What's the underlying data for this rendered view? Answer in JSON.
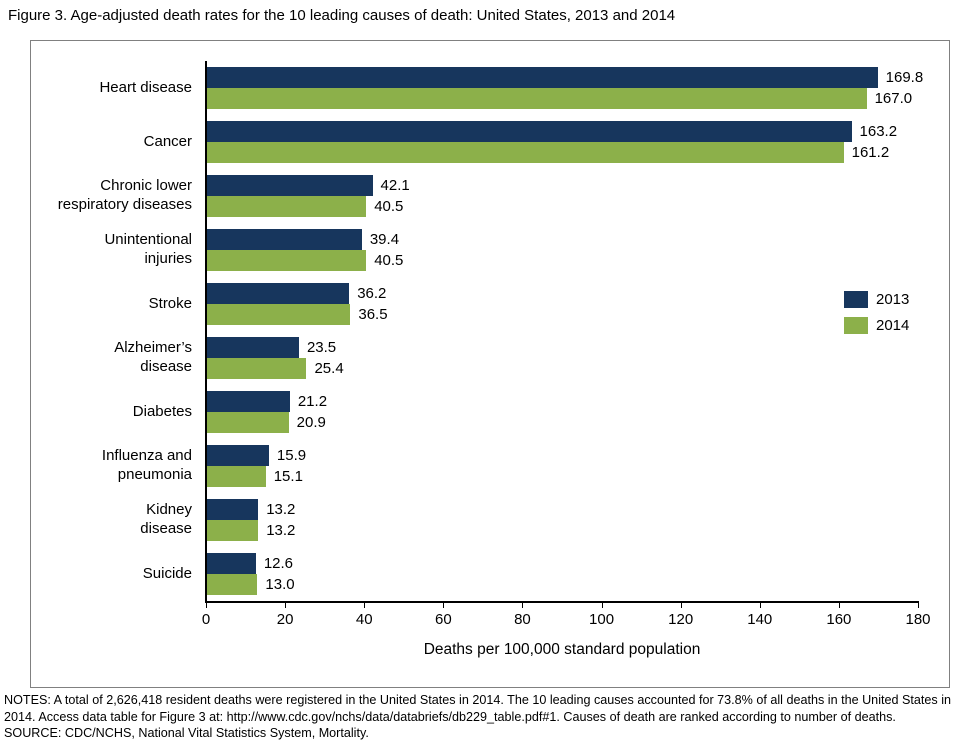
{
  "title": "Figure 3. Age-adjusted death rates for the 10 leading causes of death: United States, 2013 and 2014",
  "chart_data": {
    "type": "bar",
    "orientation": "horizontal",
    "title": "Figure 3. Age-adjusted death rates for the 10 leading causes of death: United States, 2013 and 2014",
    "categories": [
      "Heart disease",
      "Cancer",
      "Chronic lower\nrespiratory diseases",
      "Unintentional\ninjuries",
      "Stroke",
      "Alzheimer’s\ndisease",
      "Diabetes",
      "Influenza and\npneumonia",
      "Kidney\ndisease",
      "Suicide"
    ],
    "series": [
      {
        "name": "2013",
        "color": "#17365d",
        "values": [
          169.8,
          163.2,
          42.1,
          39.4,
          36.2,
          23.5,
          21.2,
          15.9,
          13.2,
          12.6
        ]
      },
      {
        "name": "2014",
        "color": "#8cb04a",
        "values": [
          167.0,
          161.2,
          40.5,
          40.5,
          36.5,
          25.4,
          20.9,
          15.1,
          13.2,
          13.0
        ]
      }
    ],
    "xlabel": "Deaths per 100,000 standard population",
    "ylabel": "",
    "xlim": [
      0,
      180
    ],
    "xticks": [
      0,
      20,
      40,
      60,
      80,
      100,
      120,
      140,
      160,
      180
    ],
    "grid": false,
    "legend_position": "right-middle"
  },
  "notes": "NOTES: A total of 2,626,418 resident deaths were registered in the United States in 2014. The 10 leading causes accounted for 73.8% of all deaths in the United States in 2014. Access data table for Figure 3 at: http://www.cdc.gov/nchs/data/databriefs/db229_table.pdf#1. Causes of death are ranked according to number of deaths.",
  "source": "SOURCE: CDC/NCHS, National Vital Statistics System, Mortality."
}
